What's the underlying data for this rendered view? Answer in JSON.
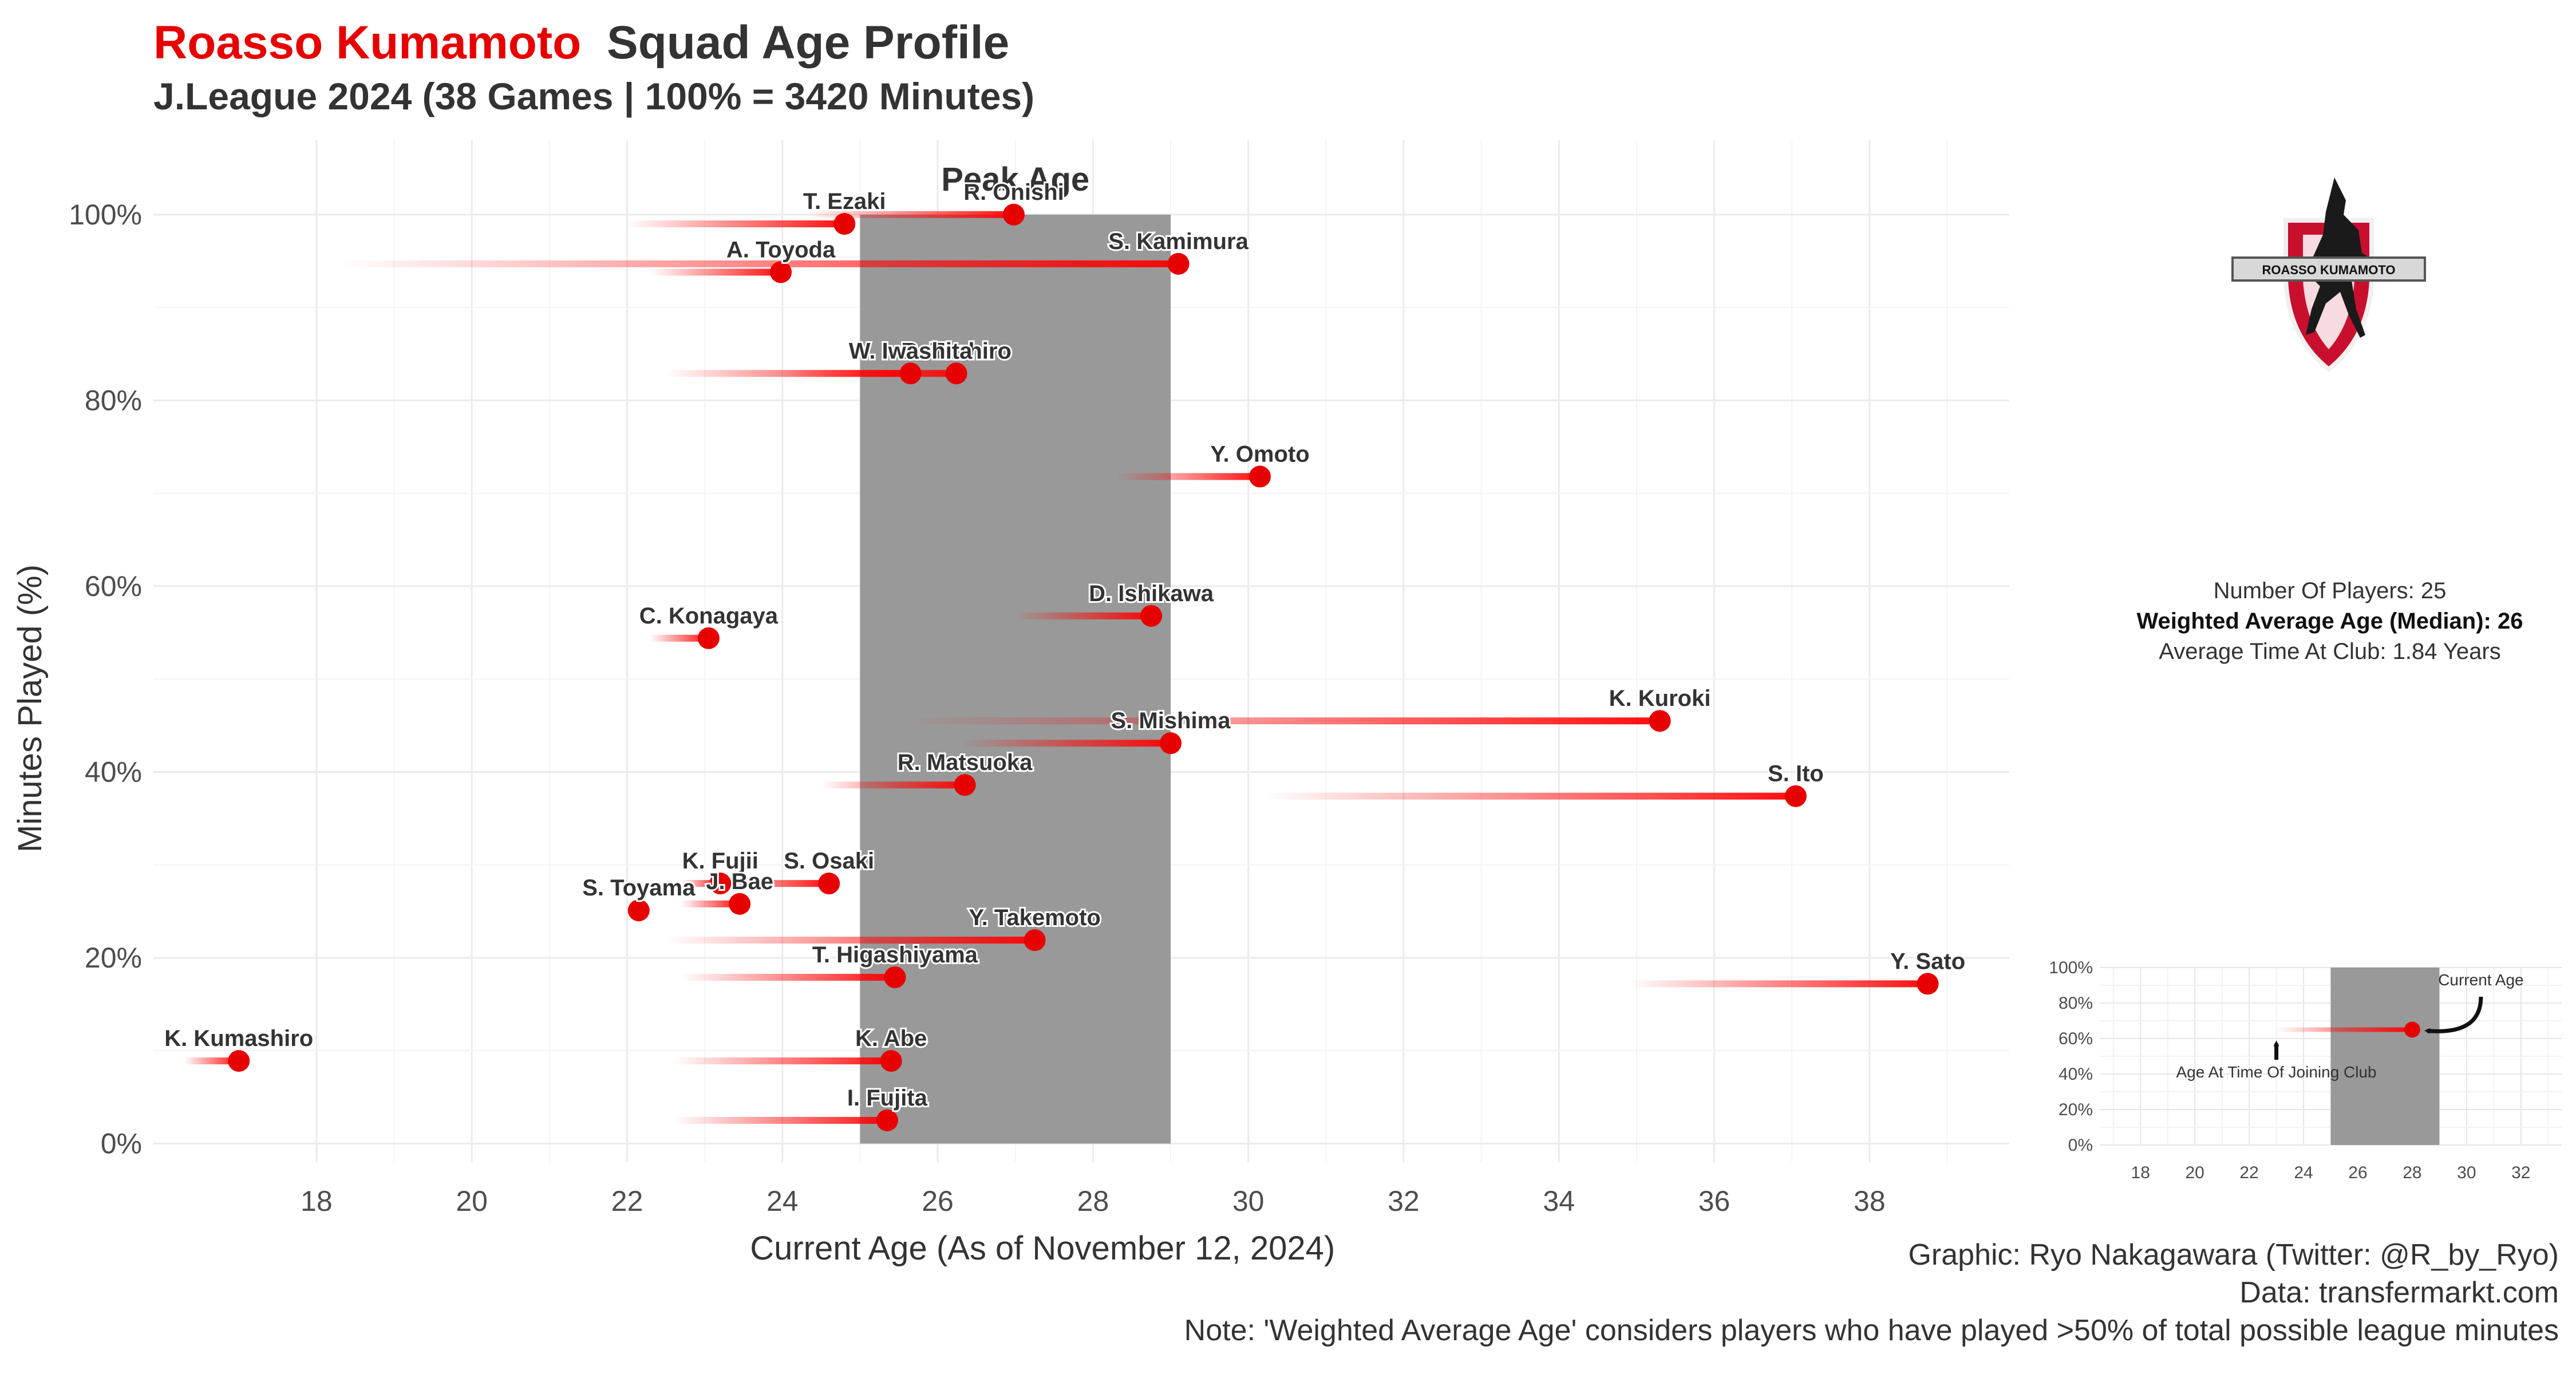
{
  "header": {
    "club": "Roasso Kumamoto",
    "title": "Squad Age Profile",
    "subtitle": "J.League 2024 (38 Games | 100% = 3420 Minutes)"
  },
  "colors": {
    "accent": "#e60000",
    "peak": "#999999",
    "grid": "#ebebeb",
    "text": "#333333"
  },
  "chart_data": {
    "type": "scatter",
    "title": "Squad Age Profile",
    "xlabel": "Current Age (As of November 12, 2024)",
    "ylabel": "Minutes Played (%)",
    "xlim": [
      15.9,
      39.8
    ],
    "ylim": [
      -2,
      108
    ],
    "x_ticks": [
      18,
      20,
      22,
      24,
      26,
      28,
      30,
      32,
      34,
      36,
      38
    ],
    "y_ticks": [
      0,
      20,
      40,
      60,
      80,
      100
    ],
    "peak_age": {
      "label": "Peak Age",
      "from": 25,
      "to": 29
    },
    "players": [
      {
        "name": "R. Onishi",
        "age": 26.98,
        "joined_age": 24.3,
        "minutes_pct": 100.0
      },
      {
        "name": "T. Ezaki",
        "age": 24.8,
        "joined_age": 22.0,
        "minutes_pct": 99.0
      },
      {
        "name": "S. Kamimura",
        "age": 29.1,
        "joined_age": 18.3,
        "minutes_pct": 94.7
      },
      {
        "name": "A. Toyoda",
        "age": 23.98,
        "joined_age": 22.3,
        "minutes_pct": 93.8
      },
      {
        "name": "R. Tashiro",
        "age": 26.24,
        "joined_age": 24.0,
        "minutes_pct": 82.9
      },
      {
        "name": "W. Iwashita",
        "age": 25.65,
        "joined_age": 22.5,
        "minutes_pct": 82.9
      },
      {
        "name": "Y. Omoto",
        "age": 30.15,
        "joined_age": 28.3,
        "minutes_pct": 71.8
      },
      {
        "name": "D. Ishikawa",
        "age": 28.75,
        "joined_age": 27.0,
        "minutes_pct": 56.8
      },
      {
        "name": "C. Konagaya",
        "age": 23.05,
        "joined_age": 22.3,
        "minutes_pct": 54.4
      },
      {
        "name": "K. Kuroki",
        "age": 35.3,
        "joined_age": 25.6,
        "minutes_pct": 45.5
      },
      {
        "name": "S. Mishima",
        "age": 29.0,
        "joined_age": 26.3,
        "minutes_pct": 43.1
      },
      {
        "name": "R. Matsuoka",
        "age": 26.35,
        "joined_age": 24.5,
        "minutes_pct": 38.6
      },
      {
        "name": "S. Ito",
        "age": 37.05,
        "joined_age": 30.2,
        "minutes_pct": 37.4
      },
      {
        "name": "S. Osaki",
        "age": 24.6,
        "joined_age": 23.0,
        "minutes_pct": 28.0
      },
      {
        "name": "K. Fujii",
        "age": 23.2,
        "joined_age": 22.7,
        "minutes_pct": 28.0
      },
      {
        "name": "J. Bae",
        "age": 23.45,
        "joined_age": 22.7,
        "minutes_pct": 25.8
      },
      {
        "name": "S. Toyama",
        "age": 22.15,
        "joined_age": 22.0,
        "minutes_pct": 25.1
      },
      {
        "name": "Y. Takemoto",
        "age": 27.25,
        "joined_age": 22.5,
        "minutes_pct": 21.9
      },
      {
        "name": "T. Higashiyama",
        "age": 25.45,
        "joined_age": 22.7,
        "minutes_pct": 17.9
      },
      {
        "name": "Y. Sato",
        "age": 38.75,
        "joined_age": 34.9,
        "minutes_pct": 17.2
      },
      {
        "name": "K. Kumashiro",
        "age": 17.0,
        "joined_age": 16.3,
        "minutes_pct": 8.9
      },
      {
        "name": "K. Abe",
        "age": 25.4,
        "joined_age": 22.6,
        "minutes_pct": 8.9
      },
      {
        "name": "I. Fujita",
        "age": 25.35,
        "joined_age": 22.6,
        "minutes_pct": 2.5
      }
    ]
  },
  "logo": {
    "text": "ROASSO KUMAMOTO"
  },
  "info": {
    "players": "Number Of Players: 25",
    "weighted_age": "Weighted Average Age (Median): 26",
    "time_at_club": "Average Time At Club: 1.84 Years"
  },
  "legend": {
    "x_ticks": [
      18,
      20,
      22,
      24,
      26,
      28,
      30,
      32
    ],
    "y_ticks": [
      "0%",
      "20%",
      "40%",
      "60%",
      "80%",
      "100%"
    ],
    "example_joined_age": 23,
    "example_age": 28,
    "example_minutes_pct": 65,
    "peak_from": 25,
    "peak_to": 29,
    "current_label": "Current Age",
    "joined_label": "Age At Time Of Joining Club"
  },
  "footer": {
    "credit": "Graphic: Ryo Nakagawara (Twitter: @R_by_Ryo)",
    "source": "Data: transfermarkt.com",
    "note": "Note: 'Weighted Average Age' considers players who have played >50% of total possible league minutes"
  }
}
